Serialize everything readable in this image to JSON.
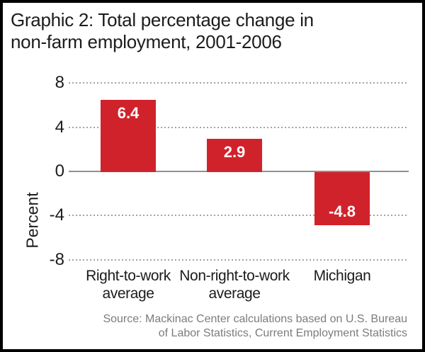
{
  "title": {
    "line1": "Graphic 2: Total percentage change in",
    "line2": "non-farm employment, 2001-2006"
  },
  "chart_data": {
    "type": "bar",
    "title": "Graphic 2: Total percentage change in non-farm employment, 2001-2006",
    "categories": [
      "Right-to-work average",
      "Non-right-to-work average",
      "Michigan"
    ],
    "category_lines": [
      [
        "Right-to-work",
        "average"
      ],
      [
        "Non-right-to-work",
        "average"
      ],
      [
        "Michigan"
      ]
    ],
    "values": [
      6.4,
      2.9,
      -4.8
    ],
    "bar_labels": [
      "6.4",
      "2.9",
      "-4.8"
    ],
    "xlabel": "",
    "ylabel": "Percent",
    "yticks": [
      8,
      4,
      0,
      -4,
      -8
    ],
    "ytick_labels": [
      "8",
      "4",
      "0",
      "-4",
      "-8"
    ],
    "ylim": [
      -8,
      8
    ],
    "legend": "none",
    "grid": "horizontal dotted lines at 8, 4, -4, -8; solid gray zero line",
    "colors": {
      "bar": "#d0222b",
      "bar_label_text": "#ffffff",
      "zero_line": "#909090",
      "gridline_dots": "#a3a3a3",
      "text": "#1c1c1e",
      "source_text": "#7c7c7c",
      "frame_border": "#000000",
      "background": "#ffffff"
    }
  },
  "source": {
    "line1": "Source: Mackinac Center calculations based on U.S. Bureau",
    "line2": "of Labor Statistics, Current Employment Statistics"
  }
}
